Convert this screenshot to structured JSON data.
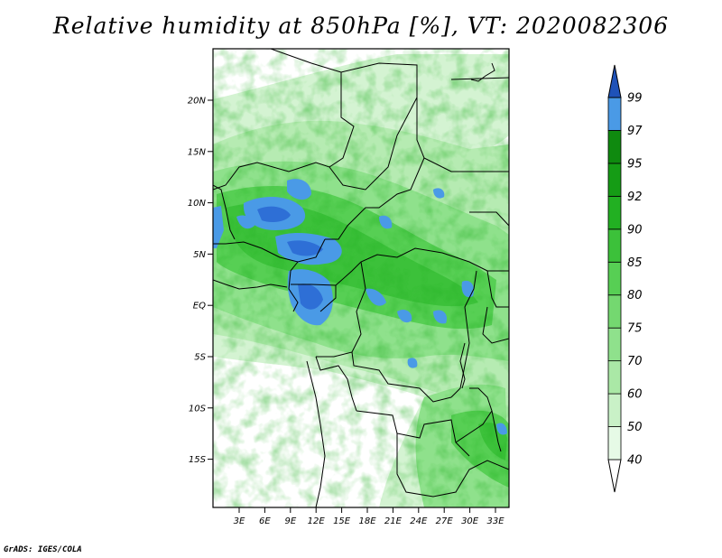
{
  "title": "Relative humidity at 850hPa [%], VT: 2020082306",
  "credit": "GrADS: IGES/COLA",
  "map": {
    "lat_ticks": [
      "20N",
      "15N",
      "10N",
      "5N",
      "EQ",
      "5S",
      "10S",
      "15S"
    ],
    "lon_ticks": [
      "3E",
      "6E",
      "9E",
      "12E",
      "15E",
      "18E",
      "21E",
      "24E",
      "27E",
      "30E",
      "33E"
    ]
  },
  "colorbar": {
    "levels": [
      "40",
      "50",
      "60",
      "70",
      "75",
      "80",
      "85",
      "90",
      "92",
      "95",
      "97",
      "99"
    ],
    "colors": [
      "#ffffff",
      "#e6fae6",
      "#c9f1c7",
      "#aae8a6",
      "#8fe18c",
      "#74d870",
      "#57cf54",
      "#3cc13a",
      "#22b022",
      "#159c15",
      "#0f8a0f",
      "#4a9ae6",
      "#2e6fd6",
      "#1f52b8"
    ]
  }
}
